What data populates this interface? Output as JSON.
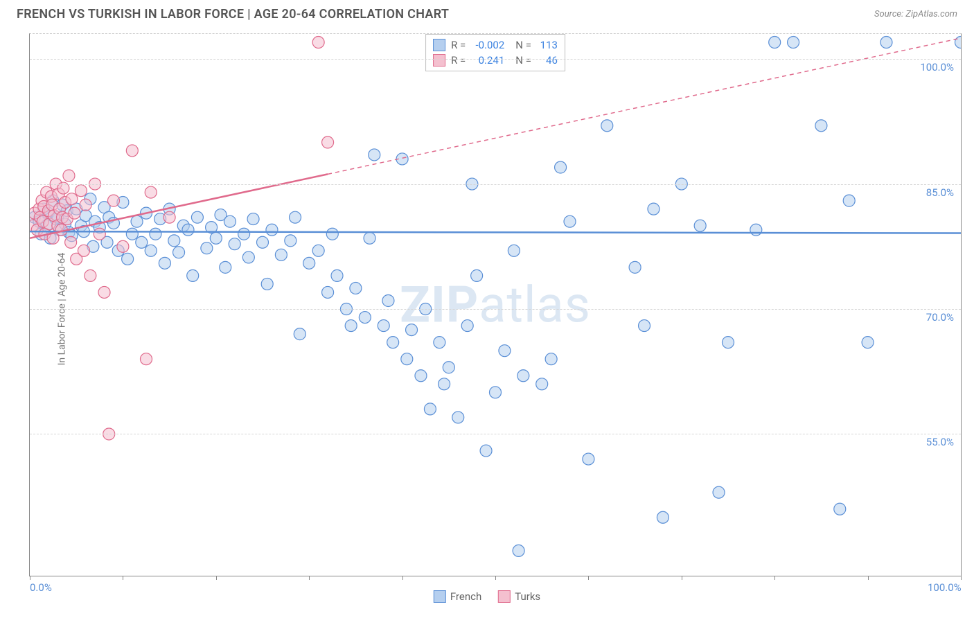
{
  "title": "FRENCH VS TURKISH IN LABOR FORCE | AGE 20-64 CORRELATION CHART",
  "source_label": "Source: ZipAtlas.com",
  "ylabel": "In Labor Force | Age 20-64",
  "watermark_bold": "ZIP",
  "watermark_rest": "atlas",
  "chart": {
    "type": "scatter",
    "xlim": [
      0,
      100
    ],
    "ylim": [
      38,
      103
    ],
    "yticks": [
      55.0,
      70.0,
      85.0,
      100.0
    ],
    "ytick_labels": [
      "55.0%",
      "70.0%",
      "85.0%",
      "100.0%"
    ],
    "xticks": [
      0,
      10,
      20,
      30,
      40,
      50,
      60,
      70,
      80,
      90,
      100
    ],
    "xtick_labels": {
      "0": "0.0%",
      "100": "100.0%"
    },
    "grid_color": "#d5d5d5",
    "axis_color": "#888888",
    "background_color": "#ffffff",
    "marker_radius": 8.5,
    "marker_stroke_width": 1.2,
    "trend_line_width": 2.5,
    "trend_dash": "6 5"
  },
  "series": [
    {
      "name": "French",
      "fill": "#b5cfef",
      "stroke": "#5a8fd6",
      "fill_opacity": 0.55,
      "trend": {
        "x0": 0,
        "y0": 79.3,
        "x1": 100,
        "y1": 79.1,
        "solid_until_x": 100
      },
      "stats": {
        "R": "-0.002",
        "N": "113"
      },
      "points": [
        [
          0.5,
          81
        ],
        [
          1,
          80.5
        ],
        [
          1.2,
          79
        ],
        [
          1.5,
          82
        ],
        [
          1.8,
          80
        ],
        [
          2,
          81.5
        ],
        [
          2.2,
          78.5
        ],
        [
          2.5,
          83
        ],
        [
          2.8,
          80.8
        ],
        [
          3,
          81
        ],
        [
          3.2,
          79.5
        ],
        [
          3.5,
          82.5
        ],
        [
          3.8,
          80.2
        ],
        [
          4,
          81.8
        ],
        [
          4.2,
          79.2
        ],
        [
          4.5,
          78.8
        ],
        [
          5,
          82
        ],
        [
          5.5,
          80
        ],
        [
          5.8,
          79.3
        ],
        [
          6,
          81.2
        ],
        [
          6.5,
          83.2
        ],
        [
          6.8,
          77.5
        ],
        [
          7,
          80.5
        ],
        [
          7.5,
          79.8
        ],
        [
          8,
          82.2
        ],
        [
          8.3,
          78
        ],
        [
          8.5,
          81
        ],
        [
          9,
          80.3
        ],
        [
          9.5,
          77
        ],
        [
          10,
          82.8
        ],
        [
          10.5,
          76
        ],
        [
          11,
          79
        ],
        [
          11.5,
          80.5
        ],
        [
          12,
          78
        ],
        [
          12.5,
          81.5
        ],
        [
          13,
          77
        ],
        [
          13.5,
          79
        ],
        [
          14,
          80.8
        ],
        [
          14.5,
          75.5
        ],
        [
          15,
          82
        ],
        [
          15.5,
          78.2
        ],
        [
          16,
          76.8
        ],
        [
          16.5,
          80
        ],
        [
          17,
          79.5
        ],
        [
          17.5,
          74
        ],
        [
          18,
          81
        ],
        [
          19,
          77.3
        ],
        [
          19.5,
          79.8
        ],
        [
          20,
          78.5
        ],
        [
          20.5,
          81.3
        ],
        [
          21,
          75
        ],
        [
          21.5,
          80.5
        ],
        [
          22,
          77.8
        ],
        [
          23,
          79
        ],
        [
          23.5,
          76.2
        ],
        [
          24,
          80.8
        ],
        [
          25,
          78
        ],
        [
          25.5,
          73
        ],
        [
          26,
          79.5
        ],
        [
          27,
          76.5
        ],
        [
          28,
          78.2
        ],
        [
          28.5,
          81
        ],
        [
          29,
          67
        ],
        [
          30,
          75.5
        ],
        [
          31,
          77
        ],
        [
          32,
          72
        ],
        [
          32.5,
          79
        ],
        [
          33,
          74
        ],
        [
          34,
          70
        ],
        [
          34.5,
          68
        ],
        [
          35,
          72.5
        ],
        [
          36,
          69
        ],
        [
          36.5,
          78.5
        ],
        [
          37,
          88.5
        ],
        [
          38,
          68
        ],
        [
          38.5,
          71
        ],
        [
          39,
          66
        ],
        [
          40,
          88
        ],
        [
          40.5,
          64
        ],
        [
          41,
          67.5
        ],
        [
          42,
          62
        ],
        [
          42.5,
          70
        ],
        [
          43,
          58
        ],
        [
          44,
          66
        ],
        [
          44.5,
          61
        ],
        [
          45,
          63
        ],
        [
          46,
          57
        ],
        [
          47,
          68
        ],
        [
          47.5,
          85
        ],
        [
          48,
          74
        ],
        [
          49,
          53
        ],
        [
          50,
          60
        ],
        [
          51,
          65
        ],
        [
          52,
          77
        ],
        [
          52.5,
          41
        ],
        [
          53,
          62
        ],
        [
          55,
          61
        ],
        [
          56,
          64
        ],
        [
          57,
          87
        ],
        [
          58,
          80.5
        ],
        [
          60,
          52
        ],
        [
          62,
          92
        ],
        [
          65,
          75
        ],
        [
          66,
          68
        ],
        [
          67,
          82
        ],
        [
          68,
          45
        ],
        [
          70,
          85
        ],
        [
          72,
          80
        ],
        [
          74,
          48
        ],
        [
          75,
          66
        ],
        [
          78,
          79.5
        ],
        [
          80,
          102
        ],
        [
          82,
          102
        ],
        [
          85,
          92
        ],
        [
          87,
          46
        ],
        [
          88,
          83
        ],
        [
          90,
          66
        ],
        [
          92,
          102
        ],
        [
          100,
          102
        ]
      ]
    },
    {
      "name": "Turks",
      "fill": "#f4c0cf",
      "stroke": "#e06a8c",
      "fill_opacity": 0.55,
      "trend": {
        "x0": 0,
        "y0": 78.5,
        "x1": 100,
        "y1": 102.5,
        "solid_until_x": 32
      },
      "stats": {
        "R": "0.241",
        "N": "46"
      },
      "points": [
        [
          0.3,
          80
        ],
        [
          0.5,
          81.5
        ],
        [
          0.8,
          79.5
        ],
        [
          1,
          82
        ],
        [
          1.1,
          81
        ],
        [
          1.3,
          83
        ],
        [
          1.4,
          80.5
        ],
        [
          1.5,
          82.3
        ],
        [
          1.6,
          79
        ],
        [
          1.8,
          84
        ],
        [
          2,
          81.8
        ],
        [
          2.1,
          80.2
        ],
        [
          2.3,
          83.5
        ],
        [
          2.4,
          82.5
        ],
        [
          2.5,
          78.5
        ],
        [
          2.6,
          81.2
        ],
        [
          2.8,
          85
        ],
        [
          3,
          80
        ],
        [
          3.1,
          83.8
        ],
        [
          3.2,
          82
        ],
        [
          3.4,
          79.5
        ],
        [
          3.5,
          81
        ],
        [
          3.6,
          84.5
        ],
        [
          3.8,
          82.8
        ],
        [
          4,
          80.8
        ],
        [
          4.2,
          86
        ],
        [
          4.4,
          78
        ],
        [
          4.5,
          83.2
        ],
        [
          4.8,
          81.5
        ],
        [
          5,
          76
        ],
        [
          5.5,
          84.2
        ],
        [
          5.8,
          77
        ],
        [
          6,
          82.5
        ],
        [
          6.5,
          74
        ],
        [
          7,
          85
        ],
        [
          7.5,
          79
        ],
        [
          8,
          72
        ],
        [
          8.5,
          55
        ],
        [
          9,
          83
        ],
        [
          10,
          77.5
        ],
        [
          11,
          89
        ],
        [
          12.5,
          64
        ],
        [
          13,
          84
        ],
        [
          15,
          81
        ],
        [
          31,
          102
        ],
        [
          32,
          90
        ]
      ]
    }
  ],
  "legend": {
    "items": [
      {
        "label": "French",
        "fill": "#b5cfef",
        "stroke": "#5a8fd6"
      },
      {
        "label": "Turks",
        "fill": "#f4c0cf",
        "stroke": "#e06a8c"
      }
    ]
  }
}
